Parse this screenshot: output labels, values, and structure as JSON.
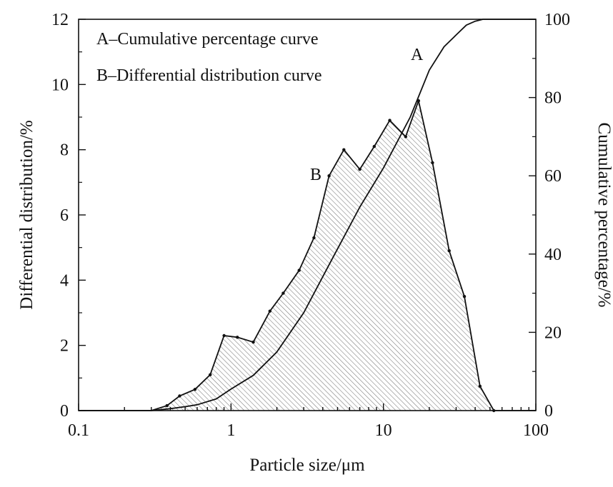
{
  "chart_data": {
    "type": "area",
    "xlabel": "Particle size/μm",
    "ylabel_left": "Differential distribution/%",
    "ylabel_right": "Cumulative percentage/%",
    "x_scale": "log",
    "xlim": [
      0.1,
      100
    ],
    "ylim_left": [
      0,
      12
    ],
    "ylim_right": [
      0,
      100
    ],
    "x_ticks": [
      {
        "value": 0.1,
        "label": "0.1"
      },
      {
        "value": 1,
        "label": "1"
      },
      {
        "value": 10,
        "label": "10"
      },
      {
        "value": 100,
        "label": "100"
      }
    ],
    "y_ticks_left": [
      {
        "value": 0,
        "label": "0"
      },
      {
        "value": 2,
        "label": "2"
      },
      {
        "value": 4,
        "label": "4"
      },
      {
        "value": 6,
        "label": "6"
      },
      {
        "value": 8,
        "label": "8"
      },
      {
        "value": 10,
        "label": "10"
      },
      {
        "value": 12,
        "label": "12"
      }
    ],
    "y_ticks_right": [
      {
        "value": 0,
        "label": "0"
      },
      {
        "value": 20,
        "label": "20"
      },
      {
        "value": 40,
        "label": "40"
      },
      {
        "value": 60,
        "label": "60"
      },
      {
        "value": 80,
        "label": "80"
      },
      {
        "value": 100,
        "label": "100"
      }
    ],
    "legend": [
      "A–Cumulative percentage curve",
      "B–Differential distribution curve"
    ],
    "legend_position": "top-left",
    "grid": false,
    "series": [
      {
        "name": "A",
        "axis": "right",
        "style": "line",
        "x": [
          0.1,
          0.3,
          0.4,
          0.5,
          0.6,
          0.8,
          1.0,
          1.4,
          2.0,
          3.0,
          4.5,
          7.0,
          10.0,
          15.0,
          20.0,
          25.0,
          30.0,
          35.0,
          40.0,
          45.0,
          60.0,
          100.0
        ],
        "values": [
          0,
          0,
          0.5,
          1,
          1.5,
          3,
          5.5,
          9,
          15,
          25,
          38,
          52,
          62,
          75,
          87,
          93,
          96,
          98.5,
          99.5,
          100,
          100,
          100
        ]
      },
      {
        "name": "B",
        "axis": "left",
        "style": "area-hatched",
        "x": [
          0.1,
          0.3,
          0.38,
          0.46,
          0.58,
          0.73,
          0.9,
          1.1,
          1.4,
          1.8,
          2.2,
          2.8,
          3.5,
          4.4,
          5.5,
          7.0,
          8.7,
          11.0,
          14.0,
          17.0,
          21.0,
          27.0,
          34.0,
          43.0,
          53.0,
          100.0
        ],
        "values": [
          0,
          0,
          0.15,
          0.45,
          0.65,
          1.1,
          2.3,
          2.25,
          2.1,
          3.05,
          3.6,
          4.3,
          5.3,
          7.2,
          8.0,
          7.4,
          8.1,
          8.9,
          8.4,
          9.5,
          7.6,
          4.9,
          3.5,
          0.75,
          0,
          0
        ]
      }
    ],
    "annotations": [
      {
        "text": "A",
        "x": 17.0,
        "y": 90,
        "axis": "right"
      },
      {
        "text": "B",
        "x": 3.9,
        "y": 7.2,
        "axis": "left"
      }
    ]
  }
}
